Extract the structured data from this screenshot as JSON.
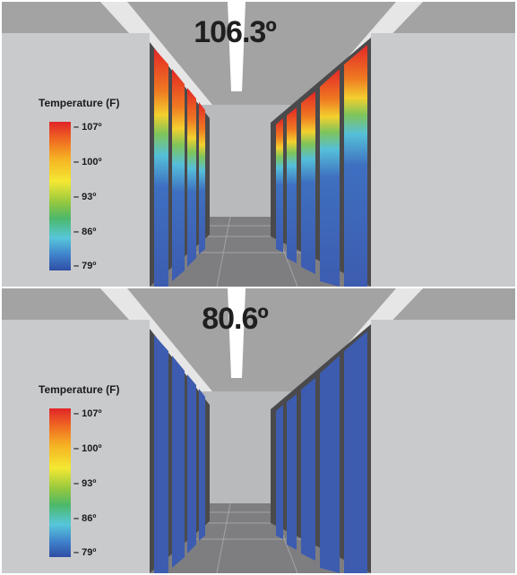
{
  "panels": [
    {
      "temperature": "106.3º",
      "legend": {
        "title": "Temperature (F)",
        "ticks": [
          "– 107º",
          "– 100º",
          "– 93º",
          "– 86º",
          "– 79º"
        ]
      },
      "state": "hot"
    },
    {
      "temperature": "80.6º",
      "legend": {
        "title": "Temperature (F)",
        "ticks": [
          "– 107º",
          "– 100º",
          "– 93º",
          "– 86º",
          "– 79º"
        ]
      },
      "state": "cool"
    }
  ],
  "colors": {
    "hot": "#e32626",
    "cool": "#3d5cb0",
    "wall": "#c8c9cb",
    "ceiling": "#9a9a9a",
    "floor": "#7d7d7d"
  }
}
